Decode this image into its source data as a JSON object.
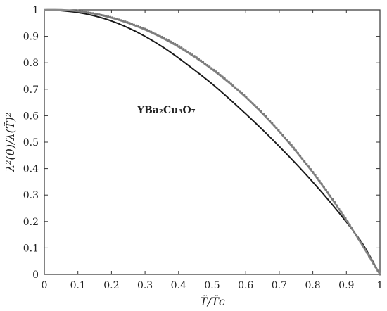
{
  "chart_data": {
    "type": "line",
    "title": "",
    "xlabel": "T̃/T̃c",
    "ylabel": "λ²(0)/λ(T̃)²",
    "xlim": [
      0,
      1
    ],
    "ylim": [
      0,
      1
    ],
    "x_ticks": [
      "0",
      "0.1",
      "0.2",
      "0.3",
      "0.4",
      "0.5",
      "0.6",
      "0.7",
      "0.8",
      "0.9",
      "1"
    ],
    "y_ticks": [
      "0",
      "0.1",
      "0.2",
      "0.3",
      "0.4",
      "0.5",
      "0.6",
      "0.7",
      "0.8",
      "0.9",
      "1"
    ],
    "grid": false,
    "annotation": "YBa₂Cu₃O₇",
    "series": [
      {
        "style": "solid-black",
        "color": "#1a1a1a",
        "x": [
          0,
          0.05,
          0.1,
          0.15,
          0.2,
          0.25,
          0.3,
          0.35,
          0.4,
          0.45,
          0.5,
          0.55,
          0.6,
          0.65,
          0.7,
          0.75,
          0.8,
          0.85,
          0.9,
          0.95,
          1.0
        ],
        "y": [
          1.0,
          0.997,
          0.99,
          0.977,
          0.958,
          0.932,
          0.9,
          0.862,
          0.818,
          0.77,
          0.72,
          0.665,
          0.607,
          0.547,
          0.484,
          0.418,
          0.349,
          0.276,
          0.198,
          0.112,
          0.0
        ]
      },
      {
        "style": "gray-line",
        "color": "#8a8a8a",
        "x": [
          0,
          0.05,
          0.1,
          0.15,
          0.2,
          0.25,
          0.3,
          0.35,
          0.4,
          0.45,
          0.5,
          0.55,
          0.6,
          0.65,
          0.7,
          0.75,
          0.8,
          0.85,
          0.9,
          0.95,
          1.0
        ],
        "y": [
          1.0,
          1.0,
          0.995,
          0.985,
          0.97,
          0.95,
          0.925,
          0.895,
          0.86,
          0.82,
          0.775,
          0.725,
          0.67,
          0.608,
          0.54,
          0.465,
          0.385,
          0.298,
          0.205,
          0.105,
          0.0
        ]
      },
      {
        "style": "gray-dots",
        "color": "#7a7a7a",
        "x": [
          0,
          0.05,
          0.1,
          0.15,
          0.2,
          0.25,
          0.3,
          0.35,
          0.4,
          0.45,
          0.5,
          0.55,
          0.6,
          0.65,
          0.7,
          0.75,
          0.8,
          0.85,
          0.9,
          0.95,
          1.0
        ],
        "y": [
          1.0,
          1.0,
          0.997,
          0.986,
          0.972,
          0.952,
          0.928,
          0.898,
          0.864,
          0.823,
          0.778,
          0.728,
          0.672,
          0.611,
          0.543,
          0.468,
          0.388,
          0.301,
          0.207,
          0.106,
          0.0
        ]
      }
    ]
  }
}
